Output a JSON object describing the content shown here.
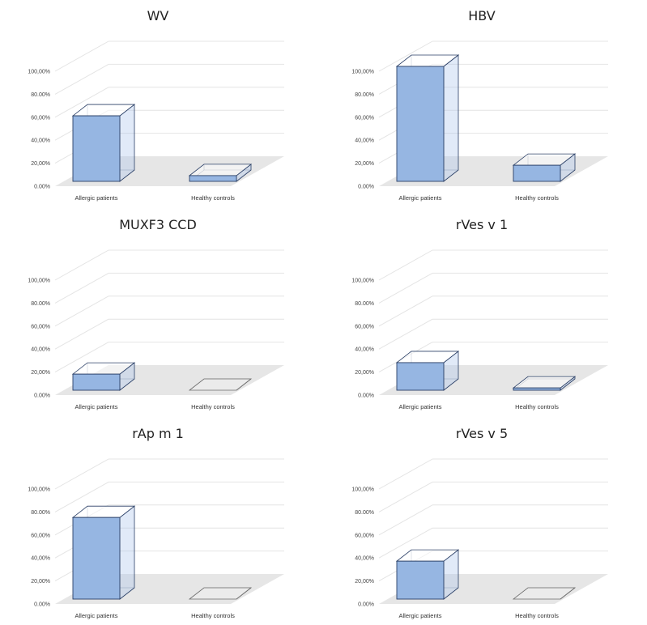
{
  "colors": {
    "bar_front": "#96b6e2",
    "bar_side": "#aac4ea",
    "bar_stroke": "#2a3f66",
    "empty_stroke": "#6b6b6b",
    "floor": "#e6e6e6",
    "grid": "#e4e4e4"
  },
  "chart_data": [
    {
      "type": "bar",
      "title": "WV",
      "categories": [
        "Allergic patients",
        "Healthy controls"
      ],
      "values": [
        0.57,
        0.05
      ],
      "ylim": [
        0,
        1
      ],
      "yticks": [
        "0.00%",
        "20,00%",
        "40,00%",
        "60,00%",
        "80.00%",
        "100,00%"
      ],
      "projection": "3d-box",
      "grid": true
    },
    {
      "type": "bar",
      "title": "HBV",
      "categories": [
        "Allergic patients",
        "Healthy controls"
      ],
      "values": [
        1.0,
        0.14
      ],
      "ylim": [
        0,
        1
      ],
      "yticks": [
        "0.00%",
        "20,00%",
        "40,00%",
        "60,00%",
        "80.00%",
        "100,00%"
      ],
      "projection": "3d-box",
      "grid": true
    },
    {
      "type": "bar",
      "title": "MUXF3 CCD",
      "categories": [
        "Allergic patients",
        "Healthy controls"
      ],
      "values": [
        0.14,
        0
      ],
      "ylim": [
        0,
        1
      ],
      "yticks": [
        "0.00%",
        "20,00%",
        "40,00%",
        "60,00%",
        "80.00%",
        "100,00%"
      ],
      "projection": "3d-box",
      "grid": true
    },
    {
      "type": "bar",
      "title": "rVes v 1",
      "categories": [
        "Allergic patients",
        "Healthy controls"
      ],
      "values": [
        0.24,
        0.02
      ],
      "ylim": [
        0,
        1
      ],
      "yticks": [
        "0.00%",
        "20,00%",
        "40,00%",
        "60,00%",
        "80.00%",
        "100,00%"
      ],
      "projection": "3d-box",
      "grid": true
    },
    {
      "type": "bar",
      "title": "rAp m 1",
      "categories": [
        "Allergic patients",
        "Healthy controls"
      ],
      "values": [
        0.71,
        0
      ],
      "ylim": [
        0,
        1
      ],
      "yticks": [
        "0.00%",
        "20,00%",
        "40,00%",
        "60,00%",
        "80.00%",
        "100,00%"
      ],
      "projection": "3d-box",
      "grid": true
    },
    {
      "type": "bar",
      "title": "rVes v 5",
      "categories": [
        "Allergic patients",
        "Healthy controls"
      ],
      "values": [
        0.33,
        0
      ],
      "ylim": [
        0,
        1
      ],
      "yticks": [
        "0.00%",
        "20,00%",
        "40,00%",
        "60,00%",
        "80.00%",
        "100,00%"
      ],
      "projection": "3d-box",
      "grid": true
    }
  ]
}
